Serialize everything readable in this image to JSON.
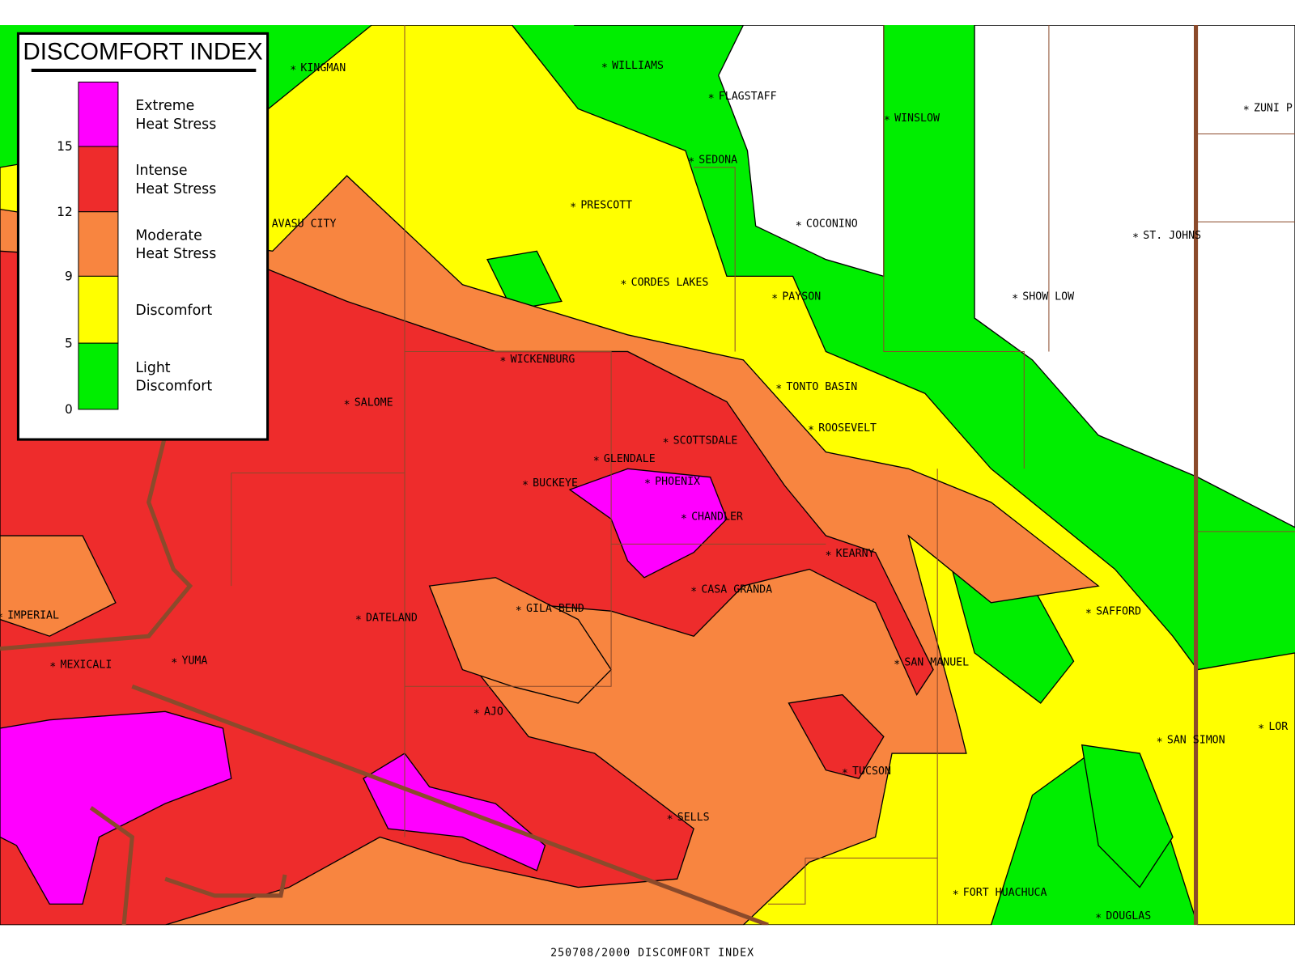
{
  "legend": {
    "title": "DISCOMFORT INDEX",
    "entries": [
      {
        "label": [
          "Extreme",
          "Heat Stress"
        ],
        "color": "#ff00ff"
      },
      {
        "label": [
          "Intense",
          "Heat Stress"
        ],
        "color": "#ee2c2c"
      },
      {
        "label": [
          "Moderate",
          "Heat Stress"
        ],
        "color": "#f88540"
      },
      {
        "label": [
          "Discomfort"
        ],
        "color": "#ffff00"
      },
      {
        "label": [
          "Light",
          "Discomfort"
        ],
        "color": "#00ee00"
      }
    ],
    "ticks": [
      15,
      12,
      9,
      5,
      0
    ]
  },
  "cities": [
    "KINGMAN",
    "WILLIAMS",
    "FLAGSTAFF",
    "WINSLOW",
    "ZUNI P",
    "SEDONA",
    "PRESCOTT",
    "COCONINO",
    "ST. JOHNS",
    "AVASU CITY",
    "CORDES LAKES",
    "PAYSON",
    "SHOW LOW",
    "WICKENBURG",
    "TONTO BASIN",
    "SALOME",
    "ROOSEVELT",
    "SCOTTSDALE",
    "GLENDALE",
    "BUCKEYE",
    "PHOENIX",
    "CHANDLER",
    "KEARNY",
    "CASA GRANDA",
    "SAFFORD",
    "IMPERIAL",
    "GILA BEND",
    "DATELAND",
    "MEXICALI",
    "YUMA",
    "SAN MANUEL",
    "AJO",
    "SAN SIMON",
    "LOR",
    "TUCSON",
    "SELLS",
    "FORT HUACHUCA",
    "DOUGLAS"
  ],
  "caption": "250708/2000 DISCOMFORT INDEX"
}
